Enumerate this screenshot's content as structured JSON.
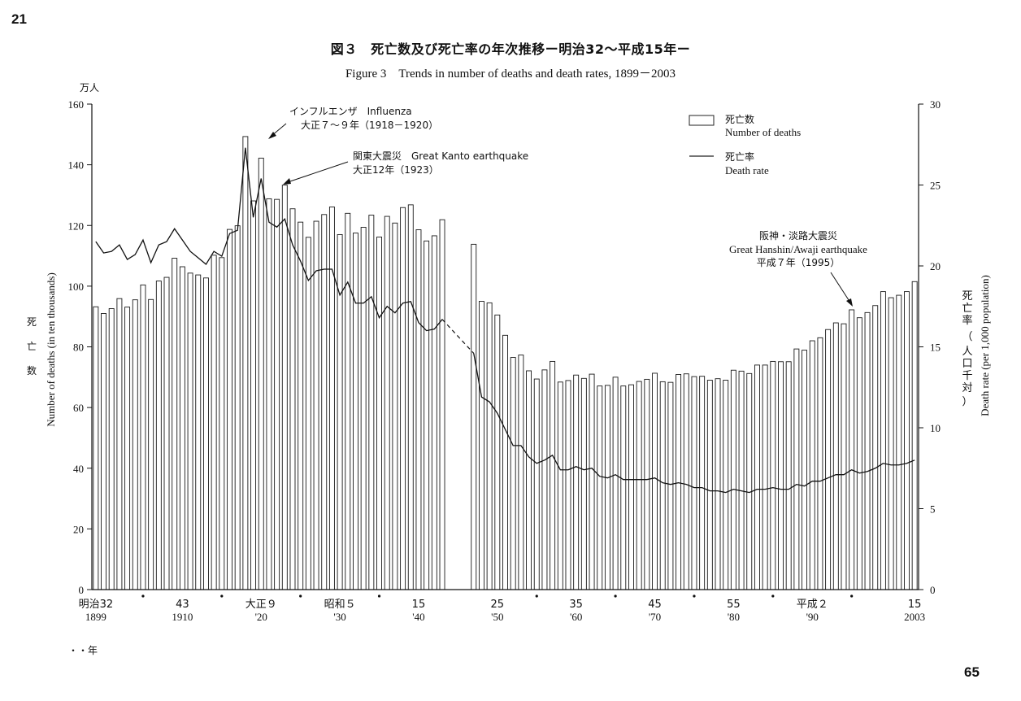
{
  "page_numbers": {
    "top": "21",
    "bottom": "65"
  },
  "titles": {
    "ja": "図３　死亡数及び死亡率の年次推移ー明治32〜平成15年ー",
    "en": "Figure 3　Trends in number of deaths and death rates, 1899－2003"
  },
  "legend": {
    "bars_ja": "死亡数",
    "bars_en": "Number of deaths",
    "line_ja": "死亡率",
    "line_en": "Death rate"
  },
  "annotations": [
    {
      "id": "influenza",
      "lines": [
        "インフルエンザ　Influenza",
        "大正７〜９年（1918－1920）"
      ]
    },
    {
      "id": "kanto",
      "lines": [
        "関東大震災　Great Kanto earthquake",
        "大正12年（1923）"
      ]
    },
    {
      "id": "hanshin",
      "lines": [
        "阪神・淡路大震災",
        "Great Hanshin/Awaji earthquake",
        "平成７年（1995）"
      ]
    }
  ],
  "axes": {
    "left_unit": "万人",
    "left_label_ja": [
      "死",
      "亡",
      "数"
    ],
    "left_label_en": "Number of deaths (in ten thousands)",
    "right_label_ja": [
      "死",
      "亡",
      "率",
      "（",
      "人",
      "口",
      "千",
      "対",
      "）"
    ],
    "right_label_en": "Death rate (per 1,000 population)",
    "x_year_marker": "・・年"
  },
  "chart_data": {
    "type": "bar",
    "title": "図３　死亡数及び死亡率の年次推移ー明治32〜平成15年ー",
    "subtitle": "Figure 3　Trends in number of deaths and death rates, 1899－2003",
    "x_range": [
      1899,
      2003
    ],
    "y_left": {
      "label": "Number of deaths (in ten thousands)",
      "unit": "万人",
      "range": [
        0,
        160
      ],
      "ticks": [
        0,
        20,
        40,
        60,
        80,
        100,
        120,
        140,
        160
      ]
    },
    "y_right": {
      "label": "Death rate (per 1,000 population)",
      "range": [
        0,
        30
      ],
      "ticks": [
        0,
        5,
        10,
        15,
        20,
        25,
        30
      ]
    },
    "x_tick_labels": [
      {
        "year": 1899,
        "era": "明治32",
        "west": "1899"
      },
      {
        "year": 1910,
        "era": "43",
        "west": "1910"
      },
      {
        "year": 1920,
        "era": "大正９",
        "west": "'20"
      },
      {
        "year": 1930,
        "era": "昭和５",
        "west": "'30"
      },
      {
        "year": 1940,
        "era": "15",
        "west": "'40"
      },
      {
        "year": 1950,
        "era": "25",
        "west": "'50"
      },
      {
        "year": 1960,
        "era": "35",
        "west": "'60"
      },
      {
        "year": 1970,
        "era": "45",
        "west": "'70"
      },
      {
        "year": 1980,
        "era": "55",
        "west": "'80"
      },
      {
        "year": 1990,
        "era": "平成２",
        "west": "'90"
      },
      {
        "year": 2003,
        "era": "15",
        "west": "2003"
      }
    ],
    "x_dot_years": [
      1905,
      1915,
      1925,
      1935,
      1955,
      1965,
      1975,
      1985,
      1995
    ],
    "series": [
      {
        "name": "死亡数 Number of deaths",
        "type": "bar",
        "axis": "left",
        "data": [
          [
            1899,
            93.2
          ],
          [
            1900,
            91.0
          ],
          [
            1901,
            92.6
          ],
          [
            1902,
            95.9
          ],
          [
            1903,
            93.1
          ],
          [
            1904,
            95.5
          ],
          [
            1905,
            100.4
          ],
          [
            1906,
            95.6
          ],
          [
            1907,
            101.7
          ],
          [
            1908,
            102.9
          ],
          [
            1909,
            109.2
          ],
          [
            1910,
            106.4
          ],
          [
            1911,
            104.3
          ],
          [
            1912,
            103.7
          ],
          [
            1913,
            102.7
          ],
          [
            1914,
            110.2
          ],
          [
            1915,
            109.4
          ],
          [
            1916,
            118.7
          ],
          [
            1917,
            119.9
          ],
          [
            1918,
            149.3
          ],
          [
            1919,
            128.1
          ],
          [
            1920,
            142.2
          ],
          [
            1921,
            128.8
          ],
          [
            1922,
            128.6
          ],
          [
            1923,
            133.3
          ],
          [
            1924,
            125.5
          ],
          [
            1925,
            121.1
          ],
          [
            1926,
            116.1
          ],
          [
            1927,
            121.4
          ],
          [
            1928,
            123.6
          ],
          [
            1929,
            126.1
          ],
          [
            1930,
            117.0
          ],
          [
            1931,
            124.0
          ],
          [
            1932,
            117.5
          ],
          [
            1933,
            119.4
          ],
          [
            1934,
            123.4
          ],
          [
            1935,
            116.2
          ],
          [
            1936,
            123.0
          ],
          [
            1937,
            120.8
          ],
          [
            1938,
            125.9
          ],
          [
            1939,
            126.8
          ],
          [
            1940,
            118.6
          ],
          [
            1941,
            114.9
          ],
          [
            1942,
            116.6
          ],
          [
            1943,
            121.9
          ],
          [
            1947,
            113.8
          ],
          [
            1948,
            95.0
          ],
          [
            1949,
            94.5
          ],
          [
            1950,
            90.5
          ],
          [
            1951,
            83.8
          ],
          [
            1952,
            76.5
          ],
          [
            1953,
            77.3
          ],
          [
            1954,
            72.1
          ],
          [
            1955,
            69.4
          ],
          [
            1956,
            72.4
          ],
          [
            1957,
            75.2
          ],
          [
            1958,
            68.4
          ],
          [
            1959,
            68.9
          ],
          [
            1960,
            70.7
          ],
          [
            1961,
            69.6
          ],
          [
            1962,
            71.0
          ],
          [
            1963,
            67.1
          ],
          [
            1964,
            67.3
          ],
          [
            1965,
            70.0
          ],
          [
            1966,
            67.1
          ],
          [
            1967,
            67.5
          ],
          [
            1968,
            68.6
          ],
          [
            1969,
            69.3
          ],
          [
            1970,
            71.3
          ],
          [
            1971,
            68.5
          ],
          [
            1972,
            68.3
          ],
          [
            1973,
            70.9
          ],
          [
            1974,
            71.1
          ],
          [
            1975,
            70.2
          ],
          [
            1976,
            70.3
          ],
          [
            1977,
            69.0
          ],
          [
            1978,
            69.5
          ],
          [
            1979,
            69.0
          ],
          [
            1980,
            72.3
          ],
          [
            1981,
            72.0
          ],
          [
            1982,
            71.2
          ],
          [
            1983,
            74.0
          ],
          [
            1984,
            74.0
          ],
          [
            1985,
            75.2
          ],
          [
            1986,
            75.1
          ],
          [
            1987,
            75.1
          ],
          [
            1988,
            79.3
          ],
          [
            1989,
            78.9
          ],
          [
            1990,
            82.0
          ],
          [
            1991,
            83.0
          ],
          [
            1992,
            85.7
          ],
          [
            1993,
            87.9
          ],
          [
            1994,
            87.6
          ],
          [
            1995,
            92.2
          ],
          [
            1996,
            89.6
          ],
          [
            1997,
            91.3
          ],
          [
            1998,
            93.6
          ],
          [
            1999,
            98.2
          ],
          [
            2000,
            96.2
          ],
          [
            2001,
            97.0
          ],
          [
            2002,
            98.2
          ],
          [
            2003,
            101.5
          ]
        ]
      },
      {
        "name": "死亡率 Death rate",
        "type": "line",
        "axis": "right",
        "data": [
          [
            1899,
            21.5
          ],
          [
            1900,
            20.8
          ],
          [
            1901,
            20.9
          ],
          [
            1902,
            21.3
          ],
          [
            1903,
            20.4
          ],
          [
            1904,
            20.7
          ],
          [
            1905,
            21.6
          ],
          [
            1906,
            20.2
          ],
          [
            1907,
            21.3
          ],
          [
            1908,
            21.5
          ],
          [
            1909,
            22.3
          ],
          [
            1910,
            21.6
          ],
          [
            1911,
            20.9
          ],
          [
            1912,
            20.5
          ],
          [
            1913,
            20.1
          ],
          [
            1914,
            20.9
          ],
          [
            1915,
            20.6
          ],
          [
            1916,
            22.0
          ],
          [
            1917,
            22.2
          ],
          [
            1918,
            27.3
          ],
          [
            1919,
            23.0
          ],
          [
            1920,
            25.4
          ],
          [
            1921,
            22.7
          ],
          [
            1922,
            22.4
          ],
          [
            1923,
            22.9
          ],
          [
            1924,
            21.3
          ],
          [
            1925,
            20.3
          ],
          [
            1926,
            19.1
          ],
          [
            1927,
            19.7
          ],
          [
            1928,
            19.8
          ],
          [
            1929,
            19.8
          ],
          [
            1930,
            18.2
          ],
          [
            1931,
            19.0
          ],
          [
            1932,
            17.7
          ],
          [
            1933,
            17.7
          ],
          [
            1934,
            18.1
          ],
          [
            1935,
            16.8
          ],
          [
            1936,
            17.5
          ],
          [
            1937,
            17.1
          ],
          [
            1938,
            17.7
          ],
          [
            1939,
            17.8
          ],
          [
            1940,
            16.5
          ],
          [
            1941,
            16.0
          ],
          [
            1942,
            16.1
          ],
          [
            1943,
            16.7
          ],
          [
            1947,
            14.6
          ],
          [
            1948,
            11.9
          ],
          [
            1949,
            11.6
          ],
          [
            1950,
            10.9
          ],
          [
            1951,
            9.9
          ],
          [
            1952,
            8.9
          ],
          [
            1953,
            8.9
          ],
          [
            1954,
            8.2
          ],
          [
            1955,
            7.8
          ],
          [
            1956,
            8.0
          ],
          [
            1957,
            8.3
          ],
          [
            1958,
            7.4
          ],
          [
            1959,
            7.4
          ],
          [
            1960,
            7.6
          ],
          [
            1961,
            7.4
          ],
          [
            1962,
            7.5
          ],
          [
            1963,
            7.0
          ],
          [
            1964,
            6.9
          ],
          [
            1965,
            7.1
          ],
          [
            1966,
            6.8
          ],
          [
            1967,
            6.8
          ],
          [
            1968,
            6.8
          ],
          [
            1969,
            6.8
          ],
          [
            1970,
            6.9
          ],
          [
            1971,
            6.6
          ],
          [
            1972,
            6.5
          ],
          [
            1973,
            6.6
          ],
          [
            1974,
            6.5
          ],
          [
            1975,
            6.3
          ],
          [
            1976,
            6.3
          ],
          [
            1977,
            6.1
          ],
          [
            1978,
            6.1
          ],
          [
            1979,
            6.0
          ],
          [
            1980,
            6.2
          ],
          [
            1981,
            6.1
          ],
          [
            1982,
            6.0
          ],
          [
            1983,
            6.2
          ],
          [
            1984,
            6.2
          ],
          [
            1985,
            6.3
          ],
          [
            1986,
            6.2
          ],
          [
            1987,
            6.2
          ],
          [
            1988,
            6.5
          ],
          [
            1989,
            6.4
          ],
          [
            1990,
            6.7
          ],
          [
            1991,
            6.7
          ],
          [
            1992,
            6.9
          ],
          [
            1993,
            7.1
          ],
          [
            1994,
            7.1
          ],
          [
            1995,
            7.4
          ],
          [
            1996,
            7.2
          ],
          [
            1997,
            7.3
          ],
          [
            1998,
            7.5
          ],
          [
            1999,
            7.8
          ],
          [
            2000,
            7.7
          ],
          [
            2001,
            7.7
          ],
          [
            2002,
            7.8
          ],
          [
            2003,
            8.0
          ]
        ],
        "dashed_segment_years": [
          1943,
          1947
        ]
      }
    ]
  }
}
